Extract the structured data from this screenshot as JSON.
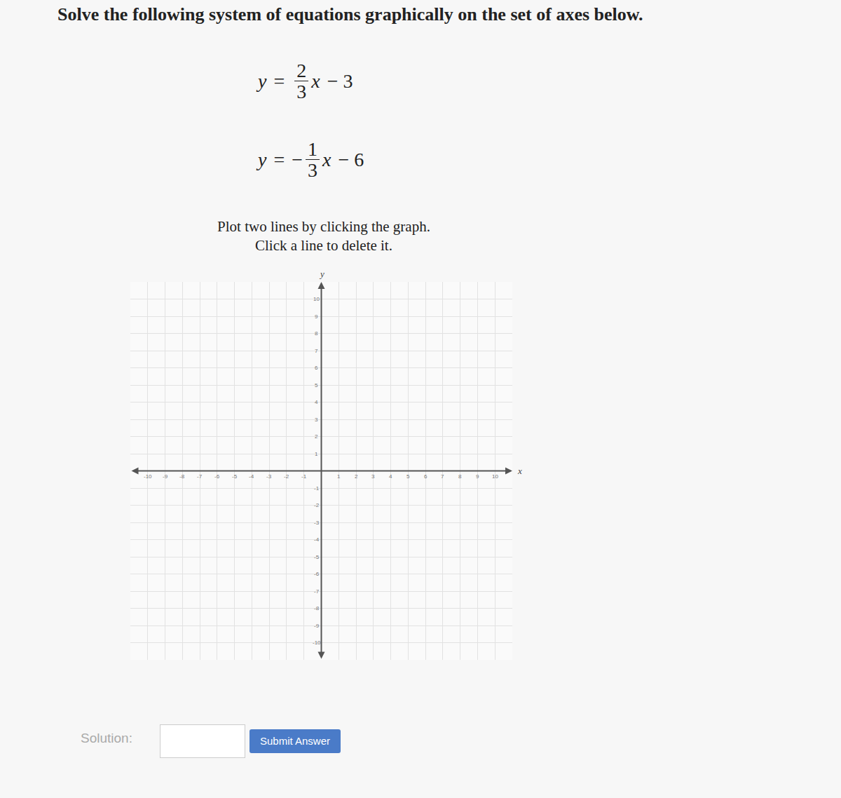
{
  "heading": "Solve the following system of equations graphically on the set of axes below.",
  "equations": [
    {
      "lhs": "y",
      "relation": "=",
      "sign": "",
      "numerator": "2",
      "denominator": "3",
      "variable": "x",
      "rest": "− 3"
    },
    {
      "lhs": "y",
      "relation": "=",
      "sign": "−",
      "numerator": "1",
      "denominator": "3",
      "variable": "x",
      "rest": "− 6"
    }
  ],
  "instructions": [
    "Plot two lines by clicking the graph.",
    "Click a line to delete it."
  ],
  "chart_data": {
    "type": "scatter",
    "x_label": "x",
    "y_label": "y",
    "xlim": [
      -11,
      11
    ],
    "ylim": [
      -11,
      11
    ],
    "xticks": [
      -10,
      -9,
      -8,
      -7,
      -6,
      -5,
      -4,
      -3,
      -2,
      -1,
      1,
      2,
      3,
      4,
      5,
      6,
      7,
      8,
      9,
      10
    ],
    "yticks": [
      -10,
      -9,
      -8,
      -7,
      -6,
      -5,
      -4,
      -3,
      -2,
      -1,
      1,
      2,
      3,
      4,
      5,
      6,
      7,
      8,
      9,
      10
    ],
    "grid": true
  },
  "solution_label": "Solution:",
  "button": "Submit Answer"
}
